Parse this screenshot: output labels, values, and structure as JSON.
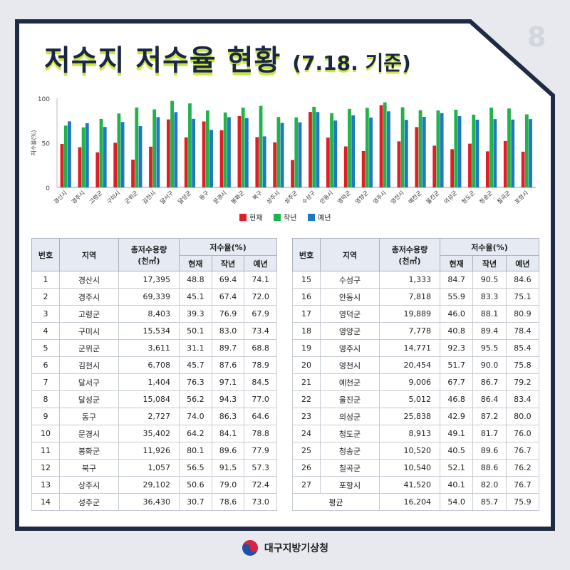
{
  "header": {
    "title": "저수지 저수율 현황",
    "subtitle": "(7.18. 기준)",
    "page_number": "8"
  },
  "colors": {
    "frame": "#1f2b44",
    "accent": "#c9e93a",
    "current": "#e01e26",
    "last_year": "#21b34b",
    "normal": "#1f78c1"
  },
  "chart_data": {
    "type": "bar",
    "title": "",
    "xlabel": "",
    "ylabel": "저수율(%)",
    "ylim": [
      0,
      100
    ],
    "yticks": [
      0,
      50,
      100
    ],
    "categories": [
      "경산시",
      "경주시",
      "고령군",
      "구미시",
      "군위군",
      "김천시",
      "달서구",
      "달성군",
      "동구",
      "문경시",
      "봉화군",
      "북구",
      "상주시",
      "성주군",
      "수성구",
      "안동시",
      "영덕군",
      "영양군",
      "영주시",
      "영천시",
      "예천군",
      "울진군",
      "의성군",
      "청도군",
      "청송군",
      "칠곡군",
      "포항시"
    ],
    "series": [
      {
        "name": "현재",
        "color": "#e01e26",
        "values": [
          48.8,
          45.1,
          39.3,
          50.1,
          31.1,
          45.7,
          76.3,
          56.2,
          74.0,
          64.2,
          80.1,
          56.5,
          50.6,
          30.7,
          84.7,
          55.9,
          46.0,
          40.8,
          92.3,
          51.7,
          67.7,
          46.8,
          42.9,
          49.1,
          40.5,
          52.1,
          40.1
        ]
      },
      {
        "name": "작년",
        "color": "#21b34b",
        "values": [
          69.4,
          67.4,
          76.9,
          83.0,
          89.7,
          87.6,
          97.1,
          94.3,
          86.3,
          84.1,
          89.6,
          91.5,
          79.0,
          78.6,
          90.5,
          83.3,
          88.1,
          89.4,
          95.5,
          90.0,
          86.7,
          86.4,
          87.2,
          81.7,
          89.6,
          88.6,
          82.0
        ]
      },
      {
        "name": "예년",
        "color": "#1f78c1",
        "values": [
          74.1,
          72.0,
          67.9,
          73.4,
          68.8,
          78.9,
          84.5,
          77.0,
          64.6,
          78.8,
          77.9,
          57.3,
          72.4,
          73.0,
          84.6,
          75.1,
          80.9,
          78.4,
          85.4,
          75.8,
          79.2,
          83.4,
          80.0,
          76.0,
          76.7,
          76.2,
          76.7
        ]
      }
    ],
    "legend": "bottom-center",
    "grid": false
  },
  "table": {
    "headers": {
      "no": "번호",
      "region": "지역",
      "capacity": "총저수용량",
      "capacity_unit": "(천㎥)",
      "rate": "저수율(%)",
      "current": "현재",
      "last_year": "작년",
      "normal": "예년"
    },
    "left_rows": [
      [
        "1",
        "경산시",
        "17,395",
        "48.8",
        "69.4",
        "74.1"
      ],
      [
        "2",
        "경주시",
        "69,339",
        "45.1",
        "67.4",
        "72.0"
      ],
      [
        "3",
        "고령군",
        "8,403",
        "39.3",
        "76.9",
        "67.9"
      ],
      [
        "4",
        "구미시",
        "15,534",
        "50.1",
        "83.0",
        "73.4"
      ],
      [
        "5",
        "군위군",
        "3,611",
        "31.1",
        "89.7",
        "68.8"
      ],
      [
        "6",
        "김천시",
        "6,708",
        "45.7",
        "87.6",
        "78.9"
      ],
      [
        "7",
        "달서구",
        "1,404",
        "76.3",
        "97.1",
        "84.5"
      ],
      [
        "8",
        "달성군",
        "15,084",
        "56.2",
        "94.3",
        "77.0"
      ],
      [
        "9",
        "동구",
        "2,727",
        "74.0",
        "86.3",
        "64.6"
      ],
      [
        "10",
        "문경시",
        "35,402",
        "64.2",
        "84.1",
        "78.8"
      ],
      [
        "11",
        "봉화군",
        "11,926",
        "80.1",
        "89.6",
        "77.9"
      ],
      [
        "12",
        "북구",
        "1,057",
        "56.5",
        "91.5",
        "57.3"
      ],
      [
        "13",
        "상주시",
        "29,102",
        "50.6",
        "79.0",
        "72.4"
      ],
      [
        "14",
        "성주군",
        "36,430",
        "30.7",
        "78.6",
        "73.0"
      ]
    ],
    "right_rows": [
      [
        "15",
        "수성구",
        "1,333",
        "84.7",
        "90.5",
        "84.6"
      ],
      [
        "16",
        "안동시",
        "7,818",
        "55.9",
        "83.3",
        "75.1"
      ],
      [
        "17",
        "영덕군",
        "19,889",
        "46.0",
        "88.1",
        "80.9"
      ],
      [
        "18",
        "영양군",
        "7,778",
        "40.8",
        "89.4",
        "78.4"
      ],
      [
        "19",
        "영주시",
        "14,771",
        "92.3",
        "95.5",
        "85.4"
      ],
      [
        "20",
        "영천시",
        "20,454",
        "51.7",
        "90.0",
        "75.8"
      ],
      [
        "21",
        "예천군",
        "9,006",
        "67.7",
        "86.7",
        "79.2"
      ],
      [
        "22",
        "울진군",
        "5,012",
        "46.8",
        "86.4",
        "83.4"
      ],
      [
        "23",
        "의성군",
        "25,838",
        "42.9",
        "87.2",
        "80.0"
      ],
      [
        "24",
        "청도군",
        "8,913",
        "49.1",
        "81.7",
        "76.0"
      ],
      [
        "25",
        "청송군",
        "10,520",
        "40.5",
        "89.6",
        "76.7"
      ],
      [
        "26",
        "칠곡군",
        "10,540",
        "52.1",
        "88.6",
        "76.2"
      ],
      [
        "27",
        "포항시",
        "41,520",
        "40.1",
        "82.0",
        "76.7"
      ]
    ],
    "average": {
      "label": "평균",
      "capacity": "16,204",
      "current": "54.0",
      "last_year": "85.7",
      "normal": "75.9"
    }
  },
  "footer": {
    "organization": "대구지방기상청",
    "logo_icon": "taegeuk-icon"
  }
}
